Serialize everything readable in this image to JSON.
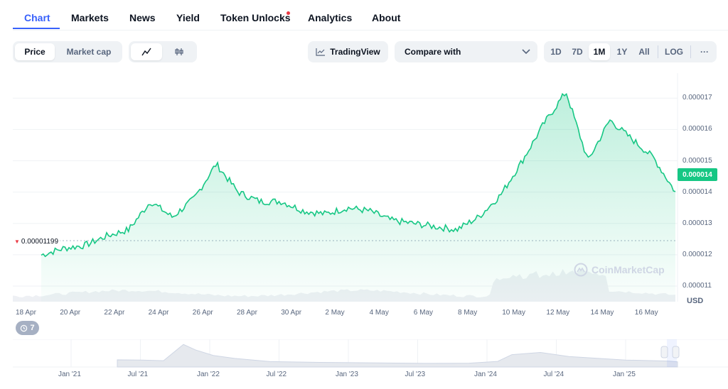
{
  "tabs": [
    {
      "label": "Chart",
      "active": true
    },
    {
      "label": "Markets"
    },
    {
      "label": "News"
    },
    {
      "label": "Yield"
    },
    {
      "label": "Token Unlocks",
      "has_notification": true
    },
    {
      "label": "Analytics"
    },
    {
      "label": "About"
    }
  ],
  "toolbar": {
    "price_label": "Price",
    "market_cap_label": "Market cap",
    "tradingview_label": "TradingView",
    "compare_placeholder": "Compare with",
    "ranges": [
      "1D",
      "7D",
      "1M",
      "1Y",
      "All"
    ],
    "active_range": "1M",
    "log_label": "LOG",
    "more_label": "···"
  },
  "chart": {
    "current_price_badge": "0.000014",
    "start_price_label": "0.00001199",
    "currency": "USD",
    "watermark": "CoinMarketCap",
    "events_badge": "7",
    "y_ticks": [
      "0.000017",
      "0.000016",
      "0.000015",
      "0.000014",
      "0.000013",
      "0.000012",
      "0.000011"
    ],
    "x_ticks": [
      "18 Apr",
      "20 Apr",
      "22 Apr",
      "24 Apr",
      "26 Apr",
      "28 Apr",
      "30 Apr",
      "2 May",
      "4 May",
      "6 May",
      "8 May",
      "10 May",
      "12 May",
      "14 May",
      "16 May"
    ],
    "navigator_ticks": [
      "Jan '21",
      "Jul '21",
      "Jan '22",
      "Jul '22",
      "Jan '23",
      "Jul '23",
      "Jan '24",
      "Jul '24",
      "Jan '25"
    ],
    "colors": {
      "accent": "#3861fb",
      "line": "#16c784",
      "alert": "#ea3943"
    }
  },
  "chart_data": {
    "type": "area",
    "x": [
      "18 Apr",
      "19 Apr",
      "20 Apr",
      "21 Apr",
      "22 Apr",
      "23 Apr",
      "24 Apr",
      "25 Apr",
      "26 Apr",
      "27 Apr",
      "28 Apr",
      "29 Apr",
      "30 Apr",
      "1 May",
      "2 May",
      "3 May",
      "4 May",
      "5 May",
      "6 May",
      "7 May",
      "8 May",
      "9 May",
      "10 May",
      "11 May",
      "12 May",
      "13 May",
      "14 May",
      "15 May",
      "16 May",
      "17 May"
    ],
    "series": [
      {
        "values": [
          1.199e-05,
          1.22e-05,
          1.23e-05,
          1.26e-05,
          1.28e-05,
          1.37e-05,
          1.32e-05,
          1.38e-05,
          1.49e-05,
          1.4e-05,
          1.37e-05,
          1.37e-05,
          1.34e-05,
          1.33e-05,
          1.35e-05,
          1.34e-05,
          1.31e-05,
          1.3e-05,
          1.29e-05,
          1.28e-05,
          1.32e-05,
          1.39e-05,
          1.5e-05,
          1.62e-05,
          1.72e-05,
          1.5e-05,
          1.63e-05,
          1.57e-05,
          1.51e-05,
          1.4e-05
        ]
      }
    ],
    "ylim": [
      1.05e-05,
      1.78e-05
    ],
    "y_scale": "linear",
    "grid": true
  }
}
